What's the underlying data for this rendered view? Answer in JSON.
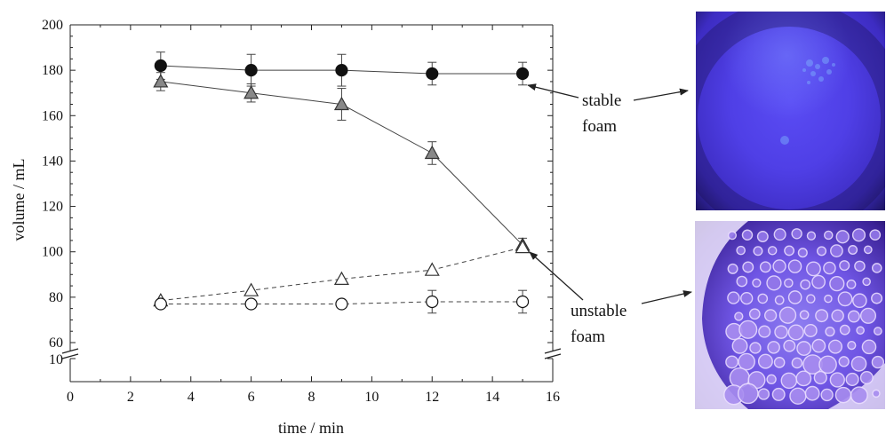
{
  "chart_data": {
    "type": "line",
    "title": "",
    "xlabel": "time / min",
    "ylabel": "volume / mL",
    "xlim": [
      0,
      16
    ],
    "ylim": [
      60,
      200
    ],
    "axis_break": {
      "lower_tick": 10,
      "break_at": 60
    },
    "x_ticks": [
      "0",
      "2",
      "4",
      "6",
      "8",
      "10",
      "12",
      "14",
      "16"
    ],
    "y_ticks": [
      "60",
      "80",
      "100",
      "120",
      "140",
      "160",
      "180",
      "200"
    ],
    "y_break_tick_label": "10",
    "grid": false,
    "legend": "none",
    "series": [
      {
        "marker": "filled-circle",
        "line": "solid",
        "color": "#111111",
        "x": [
          3,
          6,
          9,
          12,
          15
        ],
        "y": [
          182,
          180,
          180,
          178.5,
          178.5
        ],
        "err": [
          6,
          7,
          7,
          5,
          5
        ]
      },
      {
        "marker": "gray-triangle",
        "line": "solid",
        "color": "#888888",
        "x": [
          3,
          6,
          9,
          12,
          15
        ],
        "y": [
          175,
          170,
          165,
          143.5,
          103
        ],
        "err": [
          4,
          4,
          7,
          5,
          3
        ]
      },
      {
        "marker": "open-triangle",
        "line": "dashed",
        "color": "#ffffff",
        "x": [
          3,
          6,
          9,
          12,
          15
        ],
        "y": [
          78.5,
          83,
          88,
          92,
          102
        ],
        "err": [
          0,
          0,
          0,
          0,
          0
        ]
      },
      {
        "marker": "open-circle",
        "line": "dashed",
        "color": "#ffffff",
        "x": [
          3,
          6,
          9,
          12,
          15
        ],
        "y": [
          77,
          77,
          77,
          78,
          78
        ],
        "err": [
          0,
          0,
          0,
          5,
          5
        ]
      }
    ]
  },
  "annotations": {
    "stable": {
      "line1": "stable",
      "line2": "foam"
    },
    "unstable": {
      "line1": "unstable",
      "line2": "foam"
    }
  },
  "photos": [
    {
      "subject": "stable foam under UV light"
    },
    {
      "subject": "unstable foam under UV light"
    }
  ]
}
